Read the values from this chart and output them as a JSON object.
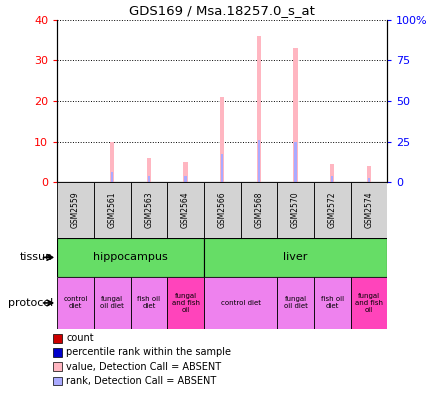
{
  "title": "GDS169 / Msa.18257.0_s_at",
  "samples": [
    "GSM2559",
    "GSM2561",
    "GSM2563",
    "GSM2564",
    "GSM2566",
    "GSM2568",
    "GSM2570",
    "GSM2572",
    "GSM2574"
  ],
  "pink_values": [
    0,
    10,
    6,
    5,
    21,
    36,
    33,
    4.5,
    4
  ],
  "blue_values": [
    0,
    2.5,
    1.5,
    1.5,
    7,
    10.5,
    10,
    1.5,
    1
  ],
  "ylim_left": [
    0,
    40
  ],
  "ylim_right": [
    0,
    100
  ],
  "yticks_left": [
    0,
    10,
    20,
    30,
    40
  ],
  "yticks_right": [
    0,
    25,
    50,
    75,
    100
  ],
  "ytick_labels_right": [
    "0",
    "25",
    "50",
    "75",
    "100%"
  ],
  "pink_color": "#FFB6C1",
  "blue_color": "#AAAAFF",
  "red_color": "#CC0000",
  "dark_blue_color": "#0000CC",
  "tissue_color": "#66DD66",
  "protocol_color_normal": "#EE82EE",
  "protocol_color_special": "#FF44BB",
  "legend_items": [
    {
      "color": "#CC0000",
      "label": "count"
    },
    {
      "color": "#0000CC",
      "label": "percentile rank within the sample"
    },
    {
      "color": "#FFB6C1",
      "label": "value, Detection Call = ABSENT"
    },
    {
      "color": "#AAAAFF",
      "label": "rank, Detection Call = ABSENT"
    }
  ],
  "protocol_data": [
    [
      0,
      1,
      "control\ndiet",
      "#EE82EE"
    ],
    [
      1,
      2,
      "fungal\noil diet",
      "#EE82EE"
    ],
    [
      2,
      3,
      "fish oil\ndiet",
      "#EE82EE"
    ],
    [
      3,
      4,
      "fungal\nand fish\noil",
      "#FF44BB"
    ],
    [
      4,
      6,
      "control diet",
      "#EE82EE"
    ],
    [
      6,
      7,
      "fungal\noil diet",
      "#EE82EE"
    ],
    [
      7,
      8,
      "fish oil\ndiet",
      "#EE82EE"
    ],
    [
      8,
      9,
      "fungal\nand fish\noil",
      "#FF44BB"
    ]
  ]
}
